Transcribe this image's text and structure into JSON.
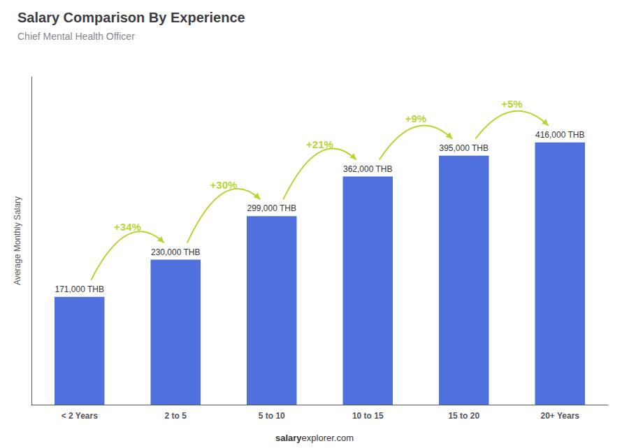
{
  "chart_data": {
    "type": "bar",
    "title": "Salary Comparison By Experience",
    "subtitle": "Chief Mental Health Officer",
    "categories": [
      "< 2 Years",
      "2 to 5",
      "5 to 10",
      "10 to 15",
      "15 to 20",
      "20+ Years"
    ],
    "values": [
      171000,
      230000,
      299000,
      362000,
      395000,
      416000
    ],
    "value_labels": [
      "171,000 THB",
      "230,000 THB",
      "299,000 THB",
      "362,000 THB",
      "395,000 THB",
      "416,000 THB"
    ],
    "data_labels": true,
    "ylabel": "Average Monthly Salary",
    "ylim": [
      0,
      520000
    ],
    "yticks": [],
    "tick_labels": "x",
    "grid": false,
    "annotations": [
      {
        "text": "+34%",
        "from": "< 2 Years",
        "to": "2 to 5"
      },
      {
        "text": "+30%",
        "from": "2 to 5",
        "to": "5 to 10"
      },
      {
        "text": "+21%",
        "from": "5 to 10",
        "to": "10 to 15"
      },
      {
        "text": "+9%",
        "from": "10 to 15",
        "to": "15 to 20"
      },
      {
        "text": "+5%",
        "from": "15 to 20",
        "to": "20+ Years"
      }
    ],
    "footer": [
      "salary",
      "explorer.com"
    ]
  }
}
